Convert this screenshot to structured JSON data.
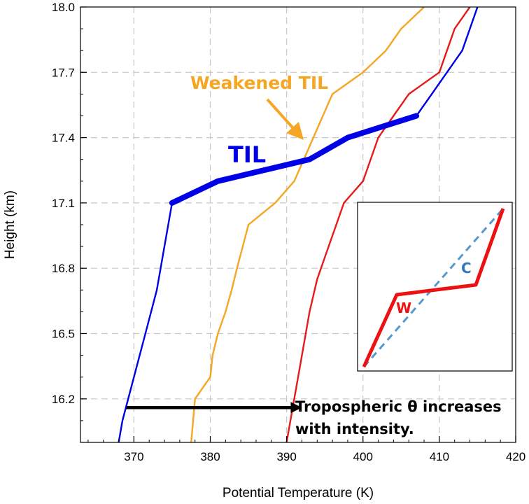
{
  "chart_data": {
    "type": "line",
    "xlabel": "Potential Temperature (K)",
    "ylabel": "Height (km)",
    "xlim": [
      363,
      420
    ],
    "ylim": [
      16.0,
      18.0
    ],
    "x_ticks": [
      "370",
      "380",
      "390",
      "400",
      "410",
      "420"
    ],
    "y_ticks": [
      "16.2",
      "16.5",
      "16.8",
      "17.1",
      "17.4",
      "17.7",
      "18.0"
    ],
    "grid": true,
    "series": [
      {
        "color": "#0000e6",
        "points": [
          [
            368.0,
            16.0
          ],
          [
            368.5,
            16.1
          ],
          [
            370.0,
            16.3
          ],
          [
            371.5,
            16.5
          ],
          [
            373.0,
            16.7
          ],
          [
            374.0,
            16.9
          ],
          [
            375.0,
            17.1
          ],
          [
            381.0,
            17.2
          ],
          [
            393.0,
            17.3
          ],
          [
            398.0,
            17.4
          ],
          [
            407.0,
            17.5
          ],
          [
            409.0,
            17.6
          ],
          [
            411.0,
            17.7
          ],
          [
            413.0,
            17.8
          ],
          [
            414.0,
            17.9
          ],
          [
            415.0,
            18.0
          ]
        ]
      },
      {
        "color": "#f5a623",
        "points": [
          [
            377.5,
            16.0
          ],
          [
            378.0,
            16.2
          ],
          [
            380.0,
            16.3
          ],
          [
            380.3,
            16.4
          ],
          [
            381.0,
            16.5
          ],
          [
            382.0,
            16.6
          ],
          [
            382.8,
            16.7
          ],
          [
            383.5,
            16.8
          ],
          [
            385.0,
            17.0
          ],
          [
            388.5,
            17.1
          ],
          [
            391.0,
            17.2
          ],
          [
            393.5,
            17.4
          ],
          [
            396.0,
            17.6
          ],
          [
            400.0,
            17.7
          ],
          [
            403.0,
            17.8
          ],
          [
            405.0,
            17.9
          ],
          [
            408.0,
            18.0
          ]
        ]
      },
      {
        "color": "#e61a1a",
        "points": [
          [
            390.0,
            16.0
          ],
          [
            391.0,
            16.2
          ],
          [
            392.0,
            16.4
          ],
          [
            393.0,
            16.6
          ],
          [
            394.0,
            16.75
          ],
          [
            395.0,
            16.85
          ],
          [
            397.5,
            17.1
          ],
          [
            400.0,
            17.2
          ],
          [
            402.0,
            17.4
          ],
          [
            404.0,
            17.5
          ],
          [
            406.0,
            17.6
          ],
          [
            410.0,
            17.7
          ],
          [
            412.0,
            17.9
          ],
          [
            414.0,
            18.0
          ]
        ]
      }
    ],
    "highlight_segment": {
      "color": "#0000e6",
      "points": [
        [
          375.0,
          17.1
        ],
        [
          381.0,
          17.2
        ],
        [
          393.0,
          17.3
        ],
        [
          398.0,
          17.4
        ],
        [
          407.0,
          17.5
        ]
      ]
    },
    "annotations": {
      "til": "TIL",
      "weakened_til": "Weakened TIL",
      "tropo_line1": "Tropospheric θ increases",
      "tropo_line2": "with intensity.",
      "arrow_from": [
        369.0,
        16.16
      ],
      "arrow_to": [
        392.0,
        16.16
      ]
    },
    "inset": {
      "label_w": "W",
      "label_c": "C",
      "w_color": "#ee1111",
      "c_color": "#5599cc"
    }
  }
}
